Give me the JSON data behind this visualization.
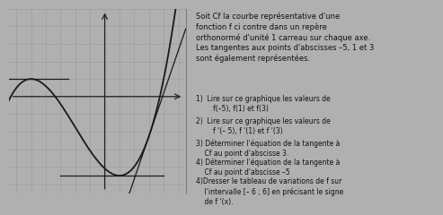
{
  "title_text": "Soit Cf la courbe représentative d'une\nfonction f ci contre dans un repère\northonormé d'unité 1 carreau sur chaque axe.\nLes tangentes aux points d'abscisses –5, 1 et 3\nsont également représentées.",
  "items": [
    "1)  Lire sur ce graphique les valeurs de\n        f(–5), f(1) et f(3)",
    "2)  Lire sur ce graphique les valeurs de\n        f '(– 5), f '(1) et f '(3)",
    "3) Déterminer l'équation de la tangente à\n    Cf au point d'abscisse 3.",
    "4) Déterminer l'équation de la tangente à\n    Cf au point d'abscisse –5",
    "4)Dresser le tableau de variations de f sur\n    l'intervalle [– 6 ; 6] en précisant le signe\n    de f '(x)."
  ],
  "graph_bg": "#cccccc",
  "grid_color": "#999999",
  "curve_color": "#1a1a1a",
  "axis_color": "#222222",
  "text_color": "#111111",
  "bg_color": "#b0b0b0",
  "right_bg": "#c8c7be",
  "xlim": [
    -6.5,
    5.5
  ],
  "ylim": [
    -5.5,
    5.0
  ],
  "a": 0.10069444,
  "b": 0.49652778,
  "c": -1.29513889,
  "d": -3.30208333
}
